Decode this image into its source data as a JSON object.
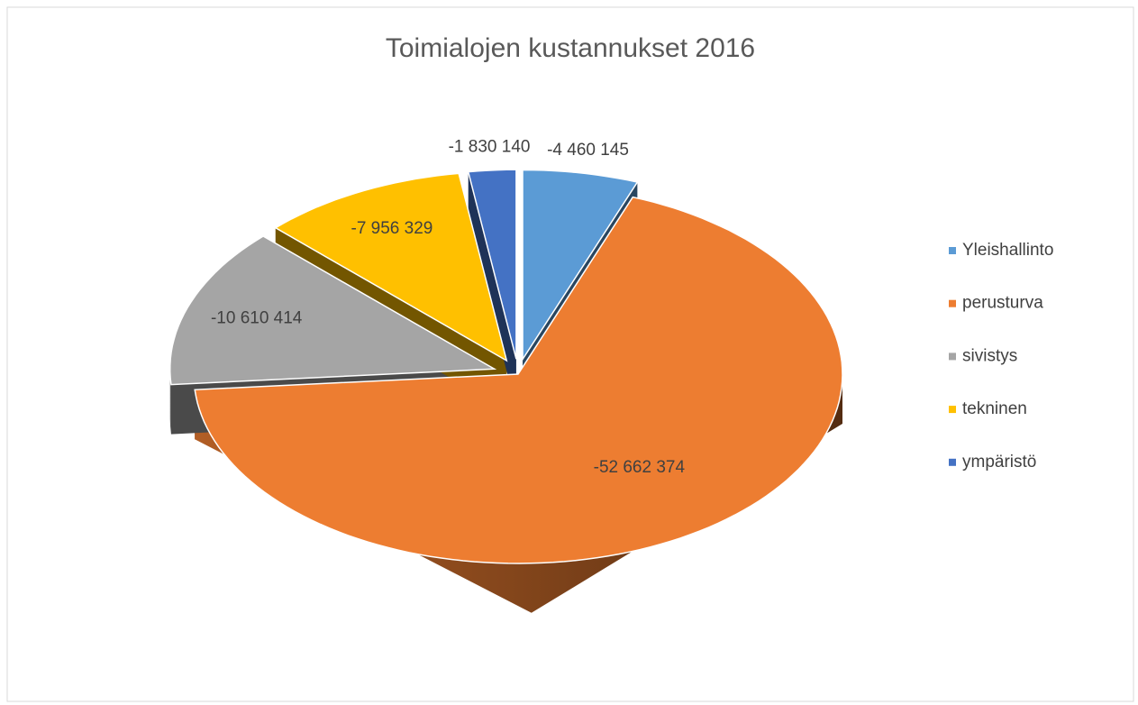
{
  "chart_data": {
    "type": "pie3d",
    "title": "Toimialojen kustannukset 2016",
    "categories": [
      "Yleishallinto",
      "perusturva",
      "sivistys",
      "tekninen",
      "ympäristö"
    ],
    "values": [
      -4460145,
      -52662374,
      -10610414,
      -7956329,
      -1830140
    ],
    "value_labels": [
      "-4 460 145",
      "-52 662 374",
      "-10 610 414",
      "-7 956 329",
      "-1 830 140"
    ],
    "colors": [
      "#5b9bd5",
      "#ed7d31",
      "#a5a5a5",
      "#ffc000",
      "#4472c4"
    ],
    "legend": "right"
  }
}
